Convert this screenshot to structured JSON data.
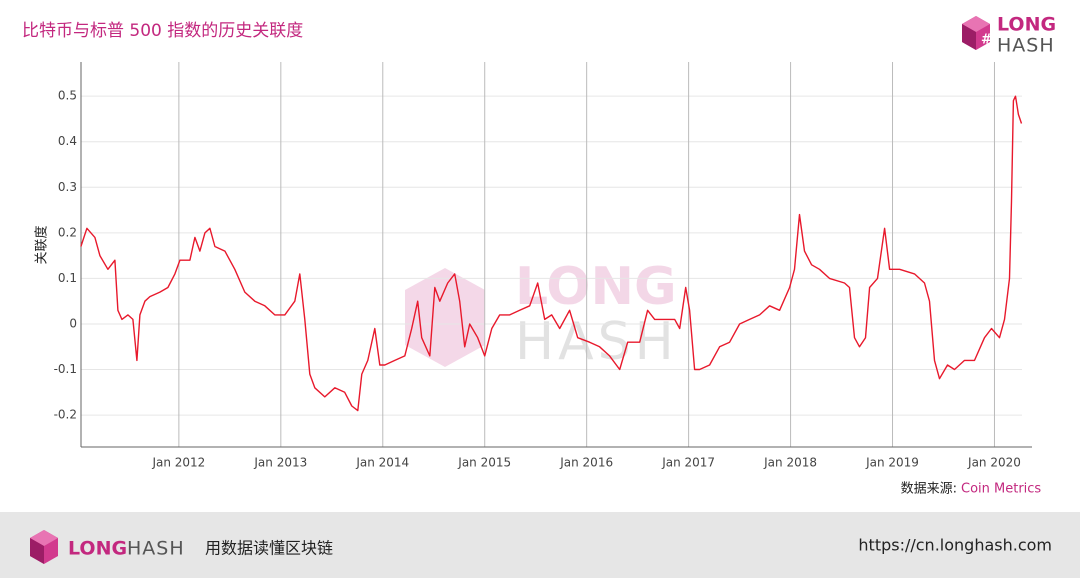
{
  "chart_data": {
    "type": "line",
    "title": "比特币与标普 500 指数的历史关联度",
    "y_label": "关联度",
    "source_label": "数据来源:",
    "source_name": "Coin Metrics",
    "grid": true,
    "xlim": [
      2011.04,
      2020.27
    ],
    "ylim": [
      -0.27,
      0.575
    ],
    "xticks": [
      {
        "value": 2012,
        "label": "Jan 2012"
      },
      {
        "value": 2013,
        "label": "Jan 2013"
      },
      {
        "value": 2014,
        "label": "Jan 2014"
      },
      {
        "value": 2015,
        "label": "Jan 2015"
      },
      {
        "value": 2016,
        "label": "Jan 2016"
      },
      {
        "value": 2017,
        "label": "Jan 2017"
      },
      {
        "value": 2018,
        "label": "Jan 2018"
      },
      {
        "value": 2019,
        "label": "Jan 2019"
      },
      {
        "value": 2020,
        "label": "Jan 2020"
      }
    ],
    "yticks": [
      -0.2,
      -0.1,
      0,
      0.1,
      0.2,
      0.3,
      0.4,
      0.5
    ],
    "series": [
      {
        "color": "#e8192c",
        "x": [
          2011.039,
          2011.098,
          2011.176,
          2011.225,
          2011.304,
          2011.373,
          2011.402,
          2011.441,
          2011.5,
          2011.549,
          2011.588,
          2011.618,
          2011.667,
          2011.716,
          2011.814,
          2011.892,
          2011.961,
          2012.01,
          2012.108,
          2012.157,
          2012.206,
          2012.255,
          2012.304,
          2012.353,
          2012.451,
          2012.549,
          2012.647,
          2012.745,
          2012.843,
          2012.941,
          2013.039,
          2013.137,
          2013.186,
          2013.235,
          2013.284,
          2013.333,
          2013.431,
          2013.529,
          2013.627,
          2013.696,
          2013.755,
          2013.794,
          2013.853,
          2013.922,
          2013.971,
          2014.02,
          2014.118,
          2014.216,
          2014.284,
          2014.343,
          2014.382,
          2014.461,
          2014.51,
          2014.559,
          2014.637,
          2014.706,
          2014.755,
          2014.804,
          2014.853,
          2014.931,
          2015.0,
          2015.069,
          2015.147,
          2015.245,
          2015.343,
          2015.441,
          2015.52,
          2015.588,
          2015.657,
          2015.735,
          2015.833,
          2015.912,
          2016.029,
          2016.127,
          2016.225,
          2016.324,
          2016.402,
          2016.52,
          2016.598,
          2016.667,
          2016.765,
          2016.863,
          2016.912,
          2016.971,
          2017.01,
          2017.059,
          2017.108,
          2017.206,
          2017.304,
          2017.402,
          2017.5,
          2017.598,
          2017.696,
          2017.794,
          2017.892,
          2017.99,
          2018.039,
          2018.088,
          2018.137,
          2018.206,
          2018.284,
          2018.382,
          2018.529,
          2018.578,
          2018.627,
          2018.676,
          2018.735,
          2018.775,
          2018.853,
          2018.922,
          2018.971,
          2019.069,
          2019.216,
          2019.314,
          2019.363,
          2019.412,
          2019.461,
          2019.539,
          2019.608,
          2019.706,
          2019.804,
          2019.902,
          2019.971,
          2020.049,
          2020.098,
          2020.147,
          2020.167,
          2020.186,
          2020.206,
          2020.235,
          2020.265
        ],
        "values": [
          0.17,
          0.21,
          0.19,
          0.15,
          0.12,
          0.14,
          0.03,
          0.01,
          0.02,
          0.01,
          -0.08,
          0.02,
          0.05,
          0.06,
          0.07,
          0.08,
          0.11,
          0.14,
          0.14,
          0.19,
          0.16,
          0.2,
          0.21,
          0.17,
          0.16,
          0.12,
          0.07,
          0.05,
          0.04,
          0.02,
          0.02,
          0.05,
          0.11,
          0.01,
          -0.11,
          -0.14,
          -0.16,
          -0.14,
          -0.15,
          -0.18,
          -0.19,
          -0.11,
          -0.08,
          -0.01,
          -0.09,
          -0.09,
          -0.08,
          -0.07,
          -0.01,
          0.05,
          -0.03,
          -0.07,
          0.08,
          0.05,
          0.09,
          0.11,
          0.05,
          -0.05,
          0,
          -0.03,
          -0.07,
          -0.01,
          0.02,
          0.02,
          0.03,
          0.04,
          0.09,
          0.01,
          0.02,
          -0.01,
          0.03,
          -0.03,
          -0.04,
          -0.05,
          -0.07,
          -0.1,
          -0.04,
          -0.04,
          0.03,
          0.01,
          0.01,
          0.01,
          -0.01,
          0.08,
          0.03,
          -0.1,
          -0.1,
          -0.09,
          -0.05,
          -0.04,
          0,
          0.01,
          0.02,
          0.04,
          0.03,
          0.08,
          0.12,
          0.24,
          0.16,
          0.13,
          0.12,
          0.1,
          0.09,
          0.08,
          -0.03,
          -0.05,
          -0.03,
          0.08,
          0.1,
          0.21,
          0.12,
          0.12,
          0.11,
          0.09,
          0.05,
          -0.08,
          -0.12,
          -0.09,
          -0.1,
          -0.08,
          -0.08,
          -0.03,
          -0.01,
          -0.03,
          0.01,
          0.1,
          0.27,
          0.49,
          0.5,
          0.46,
          0.44
        ]
      }
    ]
  },
  "branding": {
    "logo_top": "LONG",
    "logo_bottom": "HASH",
    "footer_long": "LONG",
    "footer_hash": "HASH",
    "footer_slogan": "用数据读懂区块链",
    "footer_url": "https://cn.longhash.com"
  }
}
